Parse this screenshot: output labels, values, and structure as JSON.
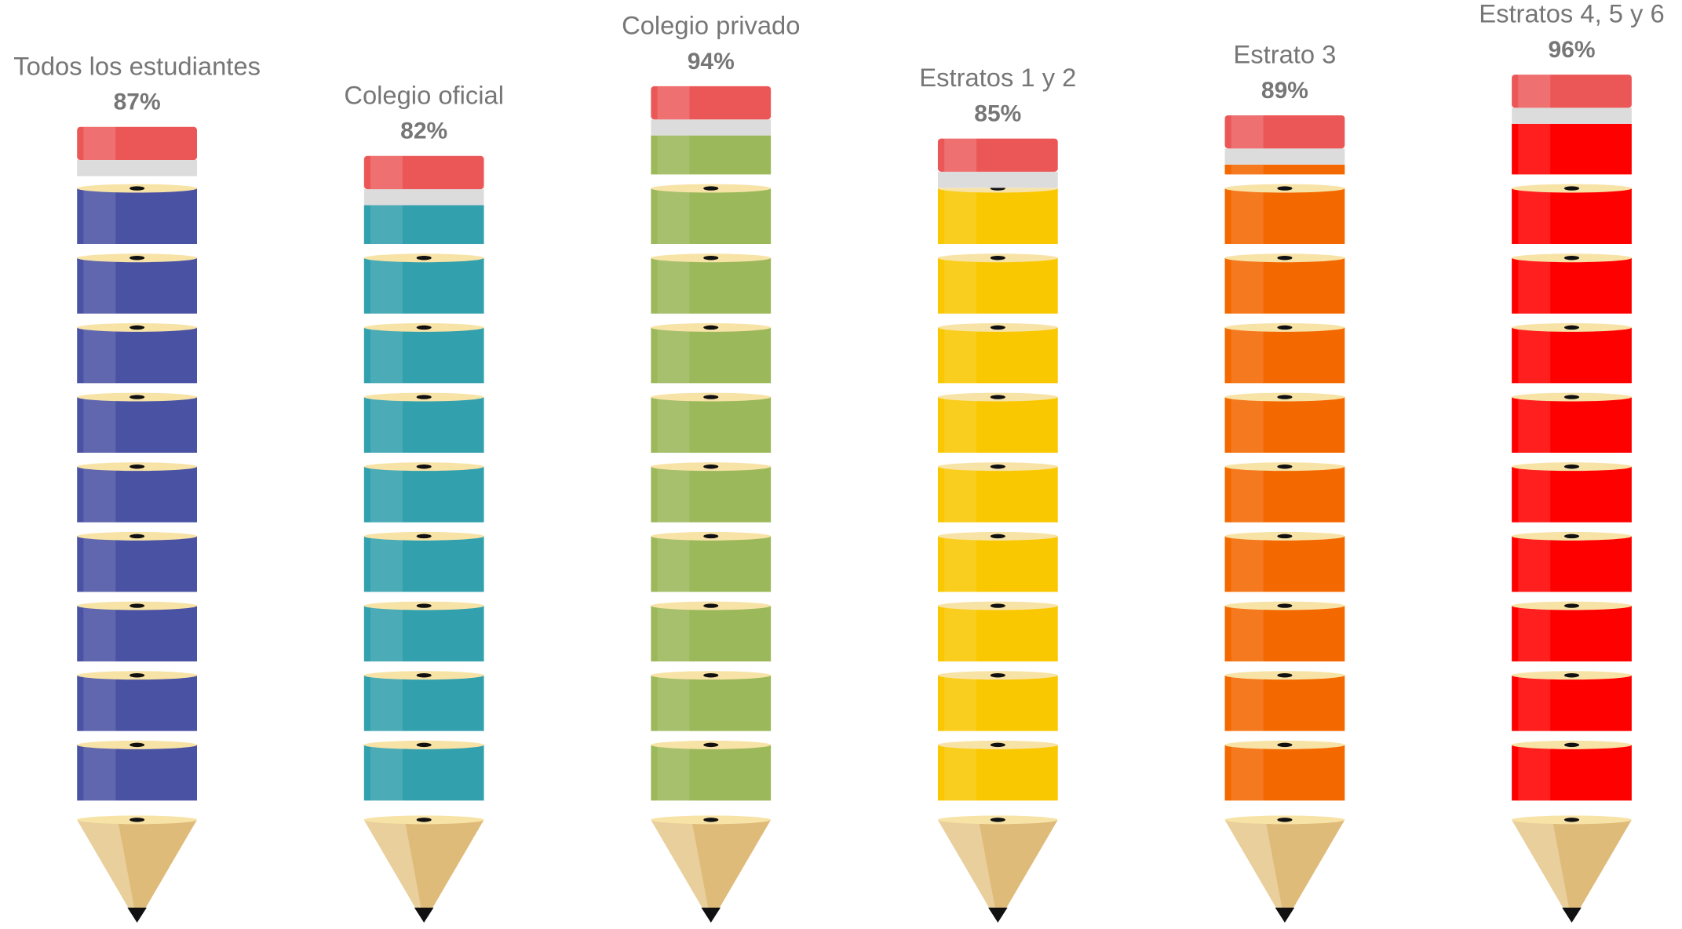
{
  "chart_data": {
    "type": "pictograph",
    "categories": [
      "Todos los estudiantes",
      "Colegio oficial",
      "Colegio privado",
      "Estratos 1 y 2",
      "Estrato 3",
      "Estratos 4, 5 y 6"
    ],
    "values": [
      87,
      82,
      94,
      85,
      89,
      96
    ],
    "value_labels": [
      "87%",
      "82%",
      "94%",
      "85%",
      "89%",
      "96%"
    ],
    "colors": [
      "#4a52a3",
      "#33a0ad",
      "#9bb85a",
      "#fac800",
      "#f46800",
      "#ff0000"
    ]
  }
}
